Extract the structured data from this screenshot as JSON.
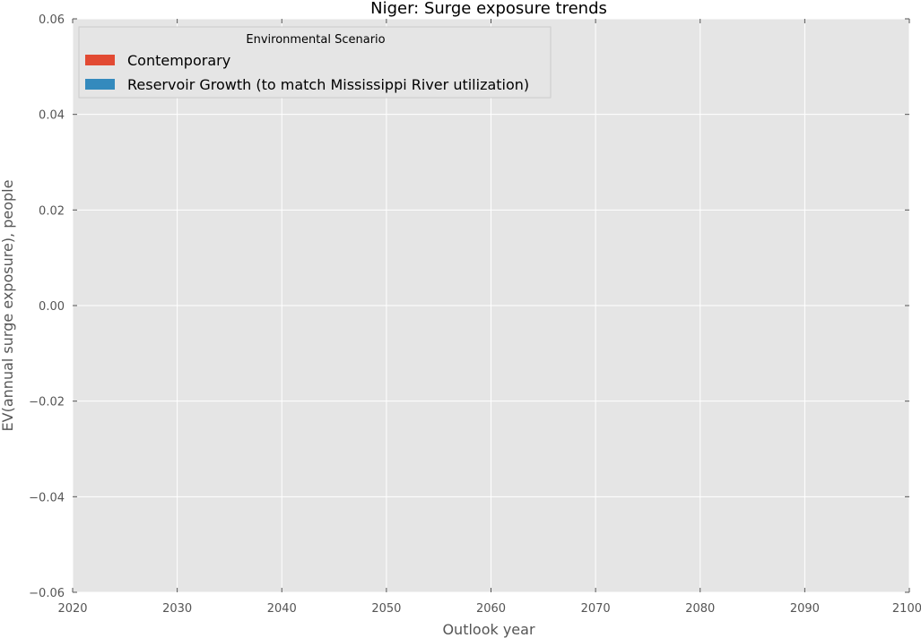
{
  "chart_data": {
    "type": "area",
    "title": "Niger: Surge exposure trends",
    "xlabel": "Outlook year",
    "ylabel": "EV(annual surge exposure), people",
    "xlim": [
      2020,
      2100
    ],
    "ylim": [
      -0.06,
      0.06
    ],
    "x_ticks": [
      "2020",
      "2030",
      "2040",
      "2050",
      "2060",
      "2070",
      "2080",
      "2090",
      "2100"
    ],
    "y_ticks": [
      "0.06",
      "0.04",
      "0.02",
      "0.00",
      "−0.02",
      "−0.04",
      "−0.06"
    ],
    "grid": true,
    "legend": {
      "title": "Environmental Scenario",
      "placement": "top-left"
    },
    "series": [
      {
        "name": "Contemporary",
        "color": "#E24A33",
        "values": []
      },
      {
        "name": "Reservoir Growth (to match Mississippi River utilization)",
        "color": "#348ABD",
        "values": []
      }
    ],
    "colors": {
      "plot_background": "#E5E5E5",
      "grid": "#FFFFFF"
    }
  }
}
